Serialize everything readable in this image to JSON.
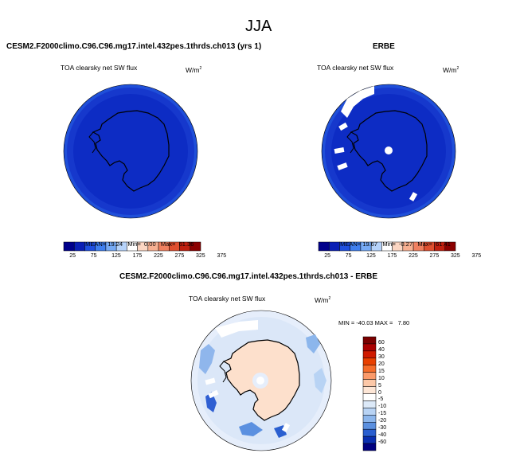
{
  "page": {
    "title": "JJA"
  },
  "panel_model": {
    "header": "CESM2.F2000climo.C96.C96.mg17.intel.432pes.1thrds.ch013 (yrs 1)",
    "variable": "TOA clearsky net SW flux",
    "units": "W/m",
    "units_sup": "2",
    "stats": {
      "mean_label": "MEAN=",
      "mean": "19.24",
      "min_label": "Min=",
      "min": "0.00",
      "max_label": "Max=",
      "max": "61.36"
    },
    "colorbar_ticks": [
      "25",
      "75",
      "125",
      "175",
      "225",
      "275",
      "325",
      "375"
    ]
  },
  "panel_obs": {
    "header": "ERBE",
    "variable": "TOA clearsky net SW flux",
    "units": "W/m",
    "units_sup": "2",
    "stats": {
      "mean_label": "MEAN=",
      "mean": "19.67",
      "min_label": "Min=",
      "min": "-0.27",
      "max_label": "Max=",
      "max": "61.41"
    },
    "colorbar_ticks": [
      "25",
      "75",
      "125",
      "175",
      "225",
      "275",
      "325",
      "375"
    ]
  },
  "panel_diff": {
    "header": "CESM2.F2000climo.C96.C96.mg17.intel.432pes.1thrds.ch013 - ERBE",
    "variable": "TOA clearsky net SW flux",
    "units": "W/m",
    "units_sup": "2",
    "minmax": "MIN = -40.03 MAX =   7.80",
    "colorbar_labels": [
      "60",
      "40",
      "30",
      "20",
      "15",
      "10",
      "5",
      "0",
      "-5",
      "-10",
      "-15",
      "-20",
      "-30",
      "-40",
      "-60"
    ]
  },
  "colors": {
    "abs_colorbar": [
      "#00008b",
      "#0a1fb5",
      "#1f4fe0",
      "#3f7fef",
      "#76aaf5",
      "#b6d3fa",
      "#ffffff",
      "#fbd6c3",
      "#f7b092",
      "#f08060",
      "#e05030",
      "#c02010",
      "#8b0000"
    ],
    "diff_colorbar": [
      "#7a0000",
      "#aa0000",
      "#d01a00",
      "#e84000",
      "#f56c2a",
      "#fa9a6a",
      "#fcc8a8",
      "#fde6d6",
      "#ffffff",
      "#dce9f8",
      "#b8d3f4",
      "#8cb6ec",
      "#5b90e0",
      "#2a5fd0",
      "#0a2fb0",
      "#000080"
    ],
    "polar_dark_blue": "#0d2cc4",
    "polar_ring_blue": "#1c46d8",
    "diff_land": "#fde0cc"
  }
}
